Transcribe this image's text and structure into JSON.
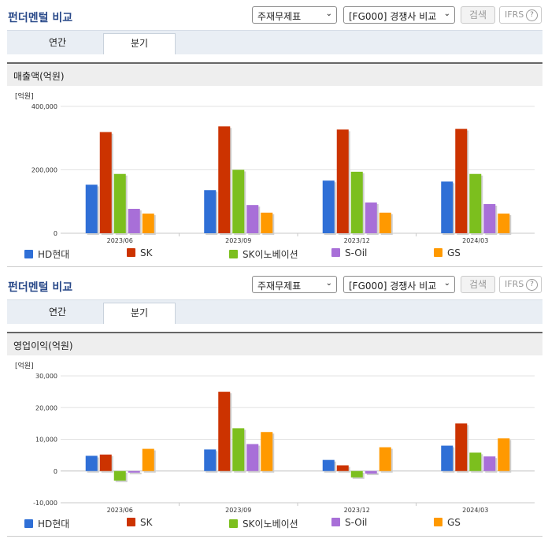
{
  "panels": [
    {
      "title": "펀더멘털 비교",
      "select_statement": "주재무제표",
      "select_peer": "[FG000] 경쟁사 비교",
      "search_label": "검색",
      "ifrs_label": "IFRS",
      "help_icon": "question-circle-icon",
      "tabs": [
        "연간",
        "분기"
      ],
      "active_tab": "분기",
      "section_title": "매출액(억원)"
    },
    {
      "title": "펀더멘털 비교",
      "select_statement": "주재무제표",
      "select_peer": "[FG000] 경쟁사 비교",
      "search_label": "검색",
      "ifrs_label": "IFRS",
      "help_icon": "question-circle-icon",
      "tabs": [
        "연간",
        "분기"
      ],
      "active_tab": "분기",
      "section_title": "영업이익(억원)"
    }
  ],
  "chart_data": [
    {
      "type": "bar",
      "unit_label": "[억원]",
      "categories": [
        "2023/06",
        "2023/09",
        "2023/12",
        "2024/03"
      ],
      "ylim": [
        0,
        400000
      ],
      "yticks": [
        0,
        200000,
        400000
      ],
      "ytick_labels": [
        "0",
        "200,000",
        "400,000"
      ],
      "grid": true,
      "legend": "bottom",
      "series": [
        {
          "name": "HD현대",
          "color": "#2f6fd6",
          "values": [
            153000,
            136000,
            166000,
            163000
          ]
        },
        {
          "name": "SK",
          "color": "#cc3300",
          "values": [
            319000,
            337000,
            327000,
            329000
          ]
        },
        {
          "name": "SK이노베이션",
          "color": "#7cbf1e",
          "values": [
            187000,
            200000,
            194000,
            187000
          ]
        },
        {
          "name": "S-Oil",
          "color": "#a86fd8",
          "values": [
            77000,
            89000,
            97000,
            92000
          ]
        },
        {
          "name": "GS",
          "color": "#ff9900",
          "values": [
            62000,
            65000,
            65000,
            62000
          ]
        }
      ]
    },
    {
      "type": "bar",
      "unit_label": "[억원]",
      "categories": [
        "2023/06",
        "2023/09",
        "2023/12",
        "2024/03"
      ],
      "ylim": [
        -10000,
        30000
      ],
      "yticks": [
        -10000,
        0,
        10000,
        20000,
        30000
      ],
      "ytick_labels": [
        "-10,000",
        "0",
        "10,000",
        "20,000",
        "30,000"
      ],
      "grid": true,
      "legend": "bottom",
      "series": [
        {
          "name": "HD현대",
          "color": "#2f6fd6",
          "values": [
            4800,
            6800,
            3500,
            8000
          ]
        },
        {
          "name": "SK",
          "color": "#cc3300",
          "values": [
            5200,
            25000,
            1800,
            15000
          ]
        },
        {
          "name": "SK이노베이션",
          "color": "#7cbf1e",
          "values": [
            -3000,
            13500,
            -2000,
            5800
          ]
        },
        {
          "name": "S-Oil",
          "color": "#a86fd8",
          "values": [
            -500,
            8500,
            -800,
            4600
          ]
        },
        {
          "name": "GS",
          "color": "#ff9900",
          "values": [
            7000,
            12300,
            7500,
            10300
          ]
        }
      ]
    }
  ]
}
